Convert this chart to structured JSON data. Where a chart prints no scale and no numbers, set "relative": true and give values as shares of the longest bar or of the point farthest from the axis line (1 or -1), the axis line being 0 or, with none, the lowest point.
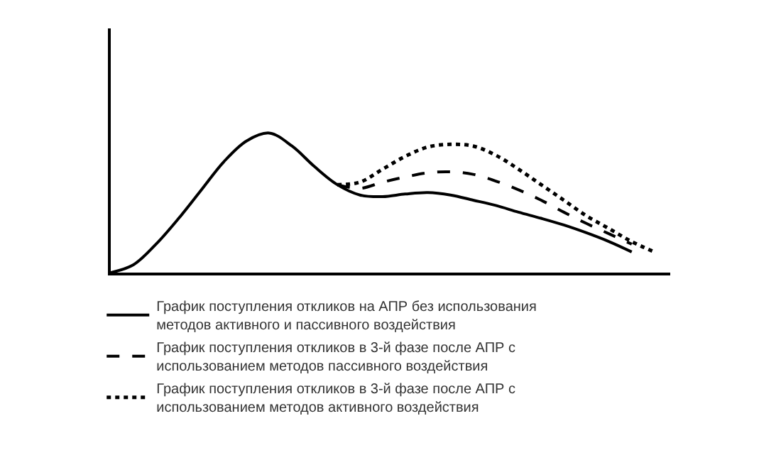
{
  "chart_data": {
    "type": "line",
    "relative": true,
    "legend": "bottom",
    "marker": "none",
    "categories": [
      null,
      null,
      null,
      null,
      null,
      null,
      null,
      null,
      null,
      null,
      null,
      null,
      null,
      null,
      null,
      null,
      null,
      null,
      null,
      null,
      null,
      null,
      null,
      null,
      null
    ],
    "series": [
      {
        "name": "График поступления откликов на АПР без использования методов активного и пассивного воздействия",
        "color": "#000000",
        "line_style": "solid",
        "values": [
          0,
          0.056,
          0.204,
          0.389,
          0.593,
          0.796,
          0.944,
          1.0,
          0.907,
          0.759,
          0.63,
          0.556,
          0.544,
          0.563,
          0.574,
          0.556,
          0.519,
          0.481,
          0.433,
          0.389,
          0.341,
          0.285,
          0.222,
          0.148,
          null
        ]
      },
      {
        "name": "График поступления откликов в 3-й фазе после АПР с использованием методов пассивного воздействия",
        "color": "#000000",
        "line_style": "dashed",
        "values": [
          null,
          null,
          null,
          null,
          null,
          null,
          null,
          null,
          null,
          null,
          0.63,
          0.604,
          0.648,
          0.685,
          0.715,
          0.722,
          0.704,
          0.656,
          0.593,
          0.519,
          0.433,
          0.352,
          0.278,
          0.204,
          null
        ]
      },
      {
        "name": "График поступления откликов в 3-й фазе после АПР с использованием методов активного воздействия",
        "color": "#000000",
        "line_style": "dotted",
        "values": [
          null,
          null,
          null,
          null,
          null,
          null,
          null,
          null,
          null,
          null,
          0.63,
          0.648,
          0.741,
          0.833,
          0.9,
          0.919,
          0.907,
          0.841,
          0.741,
          0.63,
          0.519,
          0.407,
          0.315,
          0.222,
          0.148
        ]
      }
    ]
  }
}
